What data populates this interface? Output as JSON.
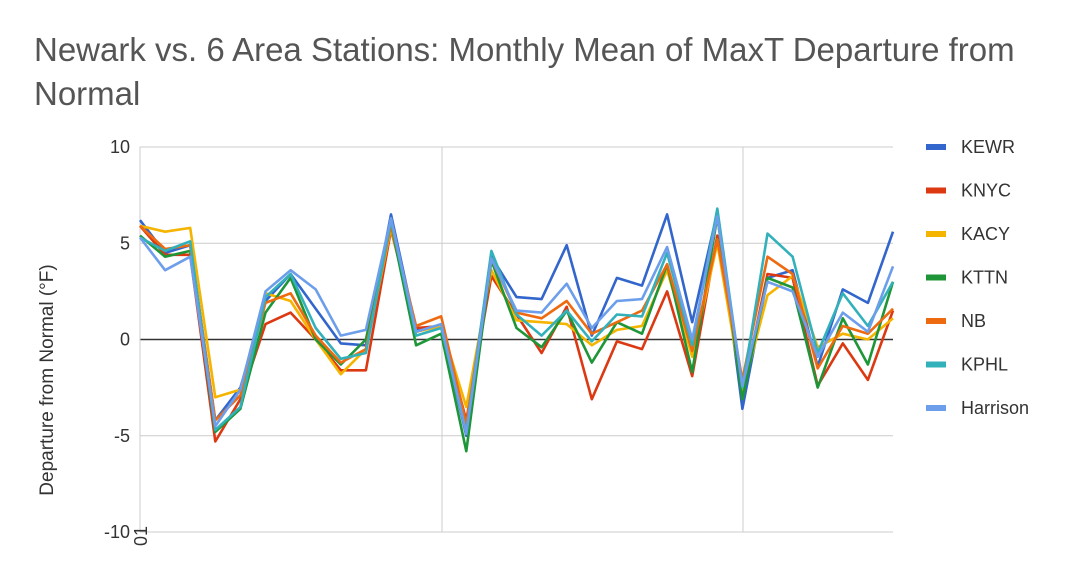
{
  "chart_data": {
    "type": "line",
    "title": "Newark vs. 6 Area Stations: Monthly Mean of MaxT Departure from Normal",
    "ylabel": "Departure from Normal (°F)",
    "xlabel": "",
    "x_first_label": "01",
    "ylim": [
      -10,
      10
    ],
    "yticks": [
      10,
      5,
      0,
      -5,
      -10
    ],
    "grid": true,
    "legend_position": "right",
    "colors": {
      "KEWR": "#3366cc",
      "KNYC": "#dc3912",
      "KACY": "#f5b400",
      "KTTN": "#1e9638",
      "NB": "#ee6a10",
      "KPHL": "#33b1ba",
      "Harrison": "#6d9eeb"
    },
    "series": [
      {
        "name": "KEWR",
        "values": [
          6.2,
          4.5,
          4.9,
          -4.2,
          -2.5,
          2.0,
          3.4,
          1.6,
          -0.2,
          -0.3,
          6.5,
          0.5,
          0.7,
          -5.0,
          4.3,
          2.2,
          2.1,
          4.9,
          0.2,
          3.2,
          2.8,
          6.5,
          0.9,
          6.6,
          -3.6,
          3.2,
          3.6,
          -1.4,
          2.6,
          1.9,
          5.6
        ]
      },
      {
        "name": "KNYC",
        "values": [
          5.9,
          4.4,
          4.4,
          -5.3,
          -3.1,
          0.8,
          1.4,
          0.0,
          -1.6,
          -1.6,
          5.7,
          0.6,
          0.7,
          -4.2,
          3.3,
          1.3,
          -0.7,
          1.7,
          -3.1,
          -0.1,
          -0.5,
          2.5,
          -1.9,
          5.4,
          -2.8,
          3.4,
          3.2,
          -2.4,
          -0.2,
          -2.1,
          1.5
        ]
      },
      {
        "name": "KACY",
        "values": [
          5.9,
          5.6,
          5.8,
          -3.0,
          -2.6,
          2.4,
          2.0,
          0.0,
          -1.8,
          -0.5,
          5.8,
          0.4,
          0.7,
          -3.5,
          3.6,
          1.0,
          0.9,
          0.8,
          -0.3,
          0.5,
          0.7,
          3.6,
          -0.9,
          5.0,
          -2.7,
          2.3,
          3.3,
          -0.4,
          0.3,
          0.0,
          1.1
        ]
      },
      {
        "name": "KTTN",
        "values": [
          5.4,
          4.3,
          4.6,
          -4.8,
          -3.6,
          1.4,
          3.2,
          0.0,
          -1.3,
          0.0,
          6.0,
          -0.3,
          0.3,
          -5.8,
          4.1,
          0.6,
          -0.4,
          1.5,
          -1.2,
          0.9,
          0.3,
          3.9,
          -1.7,
          6.4,
          -3.1,
          3.2,
          2.7,
          -2.5,
          1.1,
          -1.3,
          3.0
        ]
      },
      {
        "name": "NB",
        "values": [
          5.9,
          4.7,
          4.9,
          -4.2,
          -2.9,
          1.9,
          2.4,
          0.2,
          -1.2,
          -0.5,
          6.0,
          0.7,
          1.2,
          -4.4,
          4.2,
          1.4,
          1.1,
          2.0,
          0.3,
          0.9,
          1.5,
          3.9,
          -0.6,
          5.2,
          -2.1,
          4.3,
          3.4,
          -1.5,
          0.7,
          0.3,
          1.6
        ]
      },
      {
        "name": "KPHL",
        "values": [
          5.3,
          4.6,
          5.1,
          -4.7,
          -3.5,
          2.2,
          3.4,
          0.6,
          -1.0,
          -0.7,
          6.2,
          0.2,
          0.6,
          -4.8,
          4.6,
          1.3,
          0.2,
          1.5,
          -0.1,
          1.3,
          1.2,
          4.5,
          -0.3,
          6.8,
          -2.5,
          5.5,
          4.3,
          -0.7,
          2.4,
          0.7,
          3.0
        ]
      },
      {
        "name": "Harrison",
        "values": [
          5.3,
          3.6,
          4.3,
          -4.5,
          -2.6,
          2.5,
          3.6,
          2.6,
          0.2,
          0.5,
          6.3,
          0.4,
          0.8,
          -4.9,
          4.2,
          1.5,
          1.4,
          2.9,
          0.6,
          2.0,
          2.1,
          4.8,
          0.0,
          6.4,
          -2.4,
          3.0,
          2.5,
          -0.9,
          1.4,
          0.4,
          3.8
        ]
      }
    ]
  }
}
